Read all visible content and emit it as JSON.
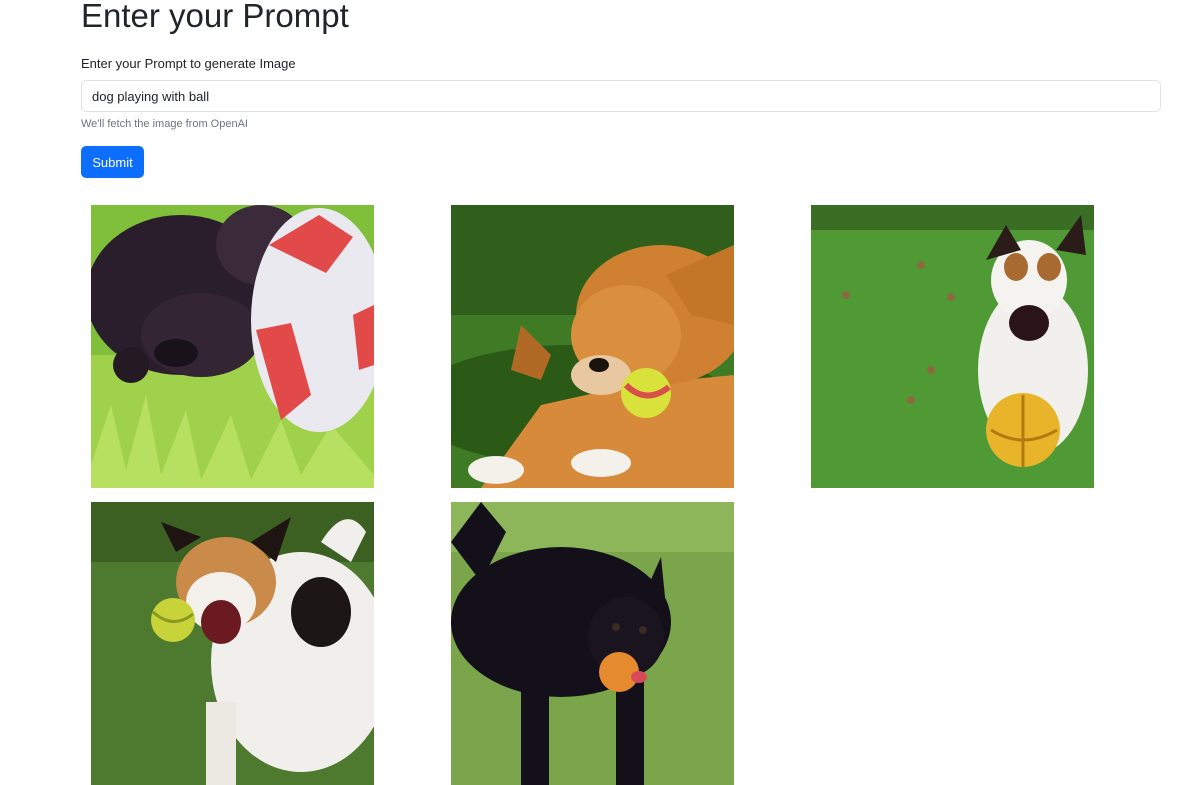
{
  "header": {
    "title": "Enter your Prompt"
  },
  "form": {
    "label": "Enter your Prompt to generate Image",
    "prompt_value": "dog playing with ball",
    "help_text": "We'll fetch the image from OpenAI",
    "submit_label": "Submit"
  },
  "results": {
    "images": [
      {
        "alt": "dog playing with ball"
      },
      {
        "alt": "dog playing with ball"
      },
      {
        "alt": "dog playing with ball"
      },
      {
        "alt": "dog playing with ball"
      },
      {
        "alt": "dog playing with ball"
      }
    ]
  }
}
